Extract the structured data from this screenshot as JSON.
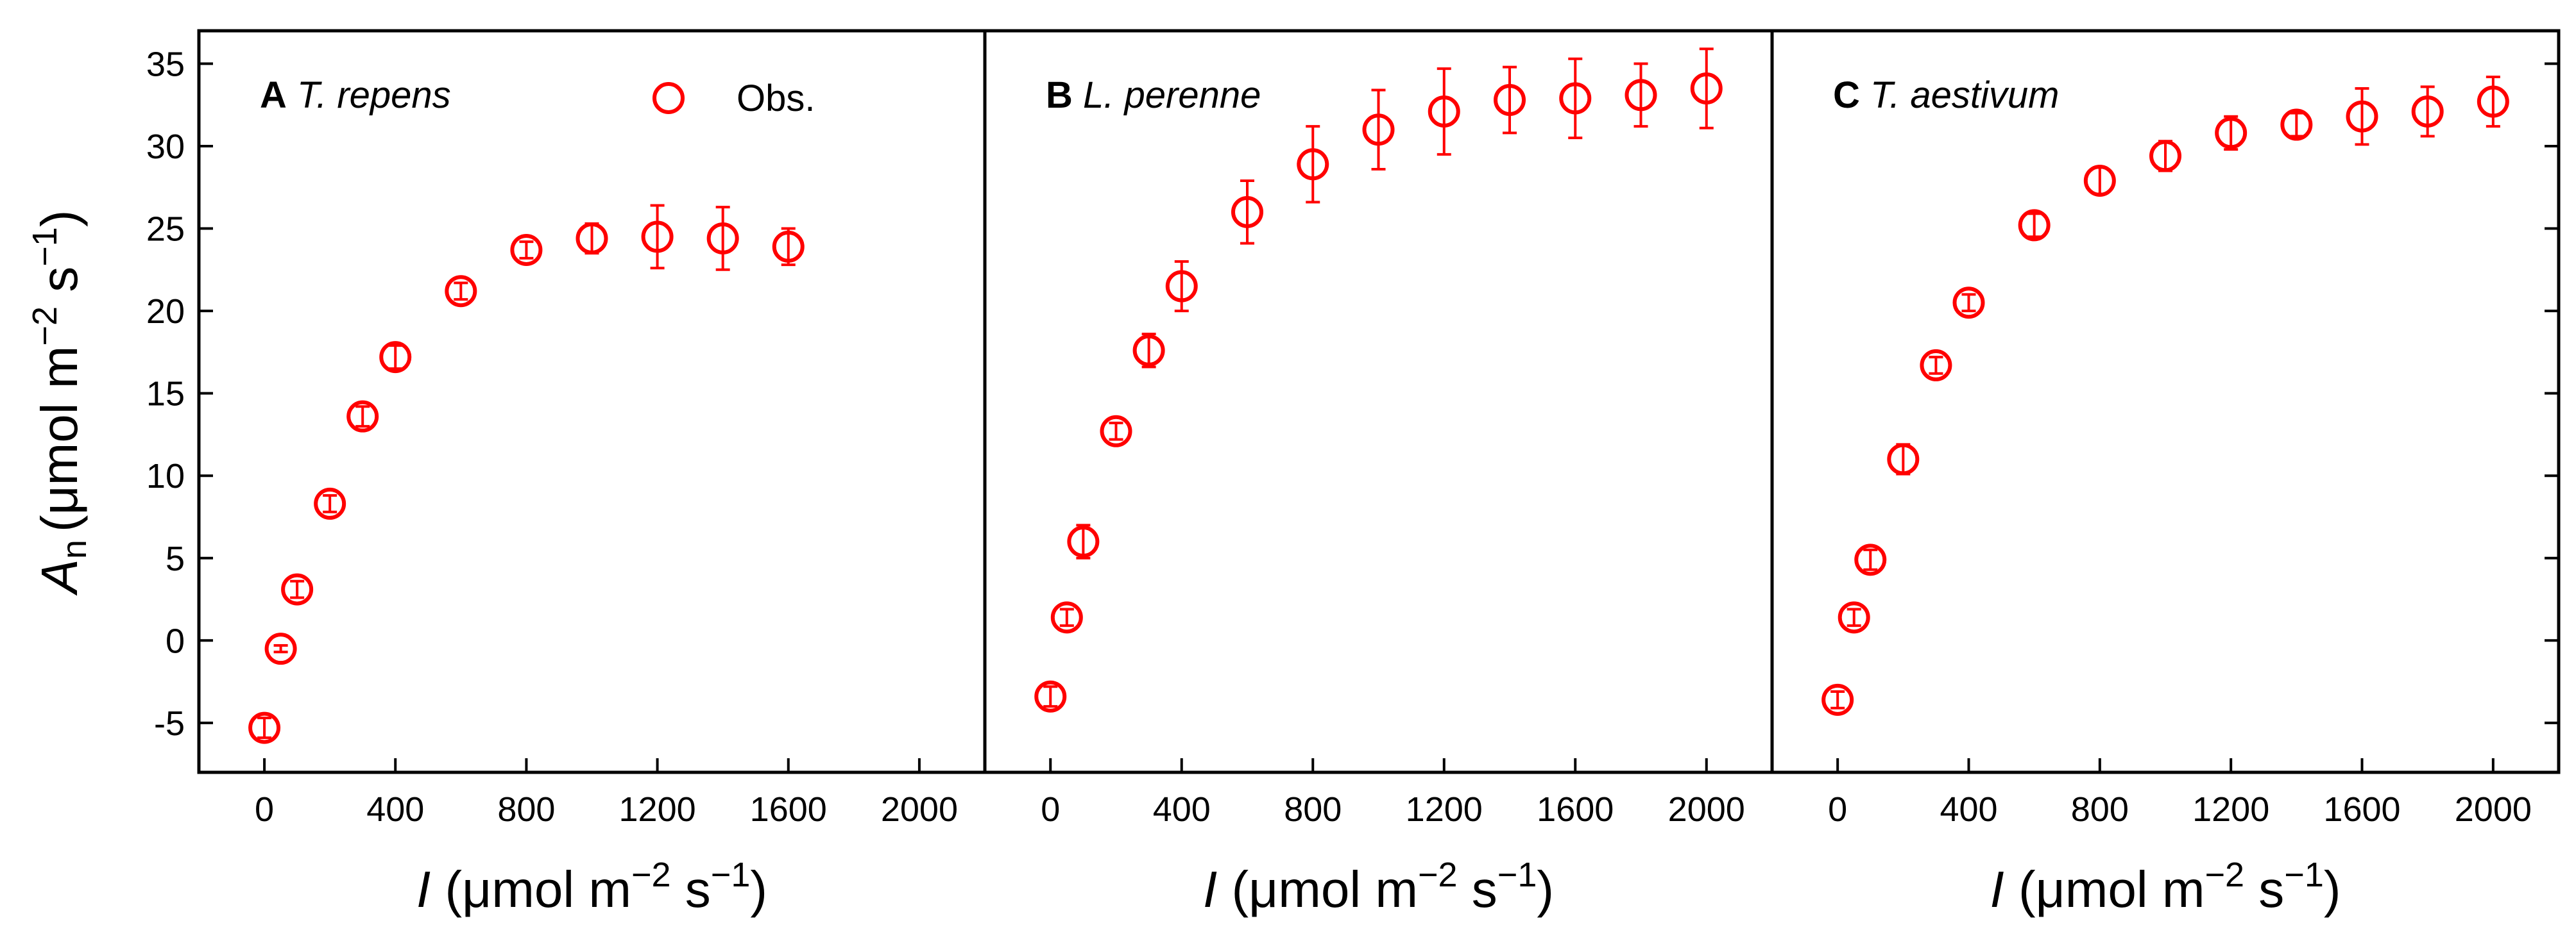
{
  "chart_data": {
    "type": "scatter",
    "ylabel": "A",
    "ylabel_sub": "n",
    "ylabel_units_prefix": "(μmol m",
    "ylabel_units_exp1": "−2",
    "ylabel_units_mid": " s",
    "ylabel_units_exp2": "−1",
    "ylabel_units_suffix": ")",
    "xlabel": "I",
    "xlabel_units_prefix": " (μmol m",
    "xlabel_units_exp1": "−2",
    "xlabel_units_mid": " s",
    "xlabel_units_exp2": "−1",
    "xlabel_units_suffix": ")",
    "ylim": [
      -8,
      37
    ],
    "xlim": [
      -200,
      2200
    ],
    "yticks": [
      -5,
      0,
      5,
      10,
      15,
      20,
      25,
      30,
      35
    ],
    "ytick_labels": [
      "-5",
      "0",
      "5",
      "10",
      "15",
      "20",
      "25",
      "30",
      "35"
    ],
    "xticks": [
      0,
      400,
      800,
      1200,
      1600,
      2000
    ],
    "xtick_labels": [
      "0",
      "400",
      "800",
      "1200",
      "1600",
      "2000"
    ],
    "legend": {
      "label": "Obs.",
      "placement": "top"
    },
    "series_color": "#ff0000",
    "panels": [
      {
        "letter": "A",
        "species": "T. repens",
        "x": [
          0,
          50,
          100,
          200,
          300,
          400,
          600,
          800,
          1000,
          1200,
          1400,
          1600
        ],
        "y": [
          -5.3,
          -0.5,
          3.1,
          8.3,
          13.6,
          17.2,
          21.2,
          23.7,
          24.4,
          24.5,
          24.4,
          23.9
        ],
        "err": [
          0.6,
          0.2,
          0.5,
          0.5,
          0.6,
          0.7,
          0.5,
          0.5,
          0.9,
          1.9,
          1.9,
          1.1
        ]
      },
      {
        "letter": "B",
        "species": "L. perenne",
        "x": [
          0,
          50,
          100,
          200,
          300,
          400,
          600,
          800,
          1000,
          1200,
          1400,
          1600,
          1800,
          2000
        ],
        "y": [
          -3.4,
          1.4,
          6.0,
          12.7,
          17.6,
          21.5,
          26.0,
          28.9,
          31.0,
          32.1,
          32.8,
          32.9,
          33.1,
          33.5
        ],
        "err": [
          0.6,
          0.5,
          1.0,
          0.5,
          1.0,
          1.5,
          1.9,
          2.3,
          2.4,
          2.6,
          2.0,
          2.4,
          1.9,
          2.4
        ]
      },
      {
        "letter": "C",
        "species": "T. aestivum",
        "x": [
          0,
          50,
          100,
          200,
          300,
          400,
          600,
          800,
          1000,
          1200,
          1400,
          1600,
          1800,
          2000
        ],
        "y": [
          -3.6,
          1.4,
          4.9,
          11.0,
          16.7,
          20.5,
          25.2,
          27.9,
          29.4,
          30.8,
          31.3,
          31.8,
          32.1,
          32.7
        ],
        "err": [
          0.5,
          0.5,
          0.6,
          0.9,
          0.5,
          0.5,
          0.7,
          0.8,
          0.9,
          1.0,
          0.7,
          1.7,
          1.5,
          1.5
        ]
      }
    ]
  }
}
